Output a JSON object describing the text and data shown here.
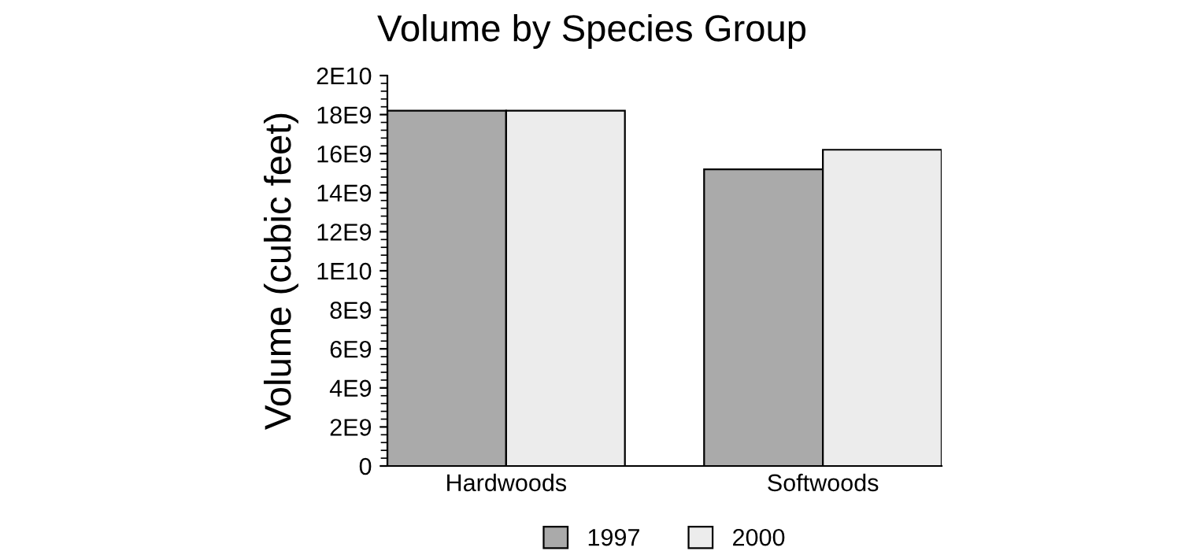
{
  "chart_data": {
    "type": "bar",
    "title": "Volume by Species Group",
    "ylabel": "Volume (cubic feet)",
    "categories": [
      "Hardwoods",
      "Softwoods"
    ],
    "series": [
      {
        "name": "1997",
        "color": "#aaaaaa",
        "values": [
          18200000000,
          15200000000
        ]
      },
      {
        "name": "2000",
        "color": "#ececec",
        "values": [
          18200000000,
          16200000000
        ]
      }
    ],
    "ylim": [
      0,
      20000000000
    ],
    "yticks": [
      0,
      {
        "value": 2000000000,
        "label": "2E9"
      },
      {
        "value": 4000000000,
        "label": "4E9"
      },
      {
        "value": 6000000000,
        "label": "6E9"
      },
      {
        "value": 8000000000,
        "label": "8E9"
      },
      {
        "value": 10000000000,
        "label": "1E10"
      },
      {
        "value": 12000000000,
        "label": "12E9"
      },
      {
        "value": 14000000000,
        "label": "14E9"
      },
      {
        "value": 16000000000,
        "label": "16E9"
      },
      {
        "value": 18000000000,
        "label": "18E9"
      },
      {
        "value": 20000000000,
        "label": "2E10"
      }
    ],
    "legend": "bottom",
    "grid": false
  }
}
